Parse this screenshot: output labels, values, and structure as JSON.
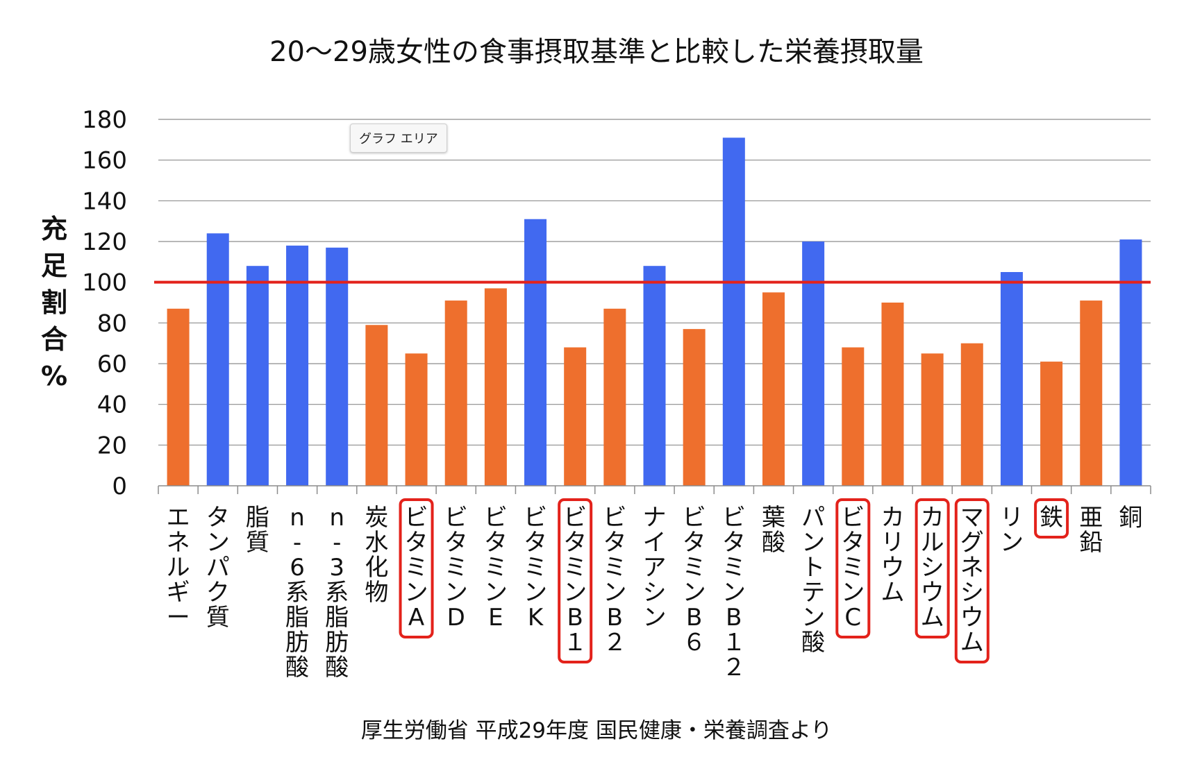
{
  "chart_data": {
    "type": "bar",
    "title": "20〜29歳女性の食事摂取基準と比較した栄養摂取量",
    "ylabel": "充足割合%",
    "source": "厚生労働省 平成29年度 国民健康・栄養調査より",
    "ylim": [
      0,
      180
    ],
    "yticks": [
      0,
      20,
      40,
      60,
      80,
      100,
      120,
      140,
      160,
      180
    ],
    "grid": true,
    "reference_line": 100,
    "colors": {
      "above": "#4169f0",
      "below": "#ee6f2d",
      "reference": "#e3221b",
      "highlight": "#e3221b",
      "grid": "#8c8c8c"
    },
    "categories": [
      "エネルギー",
      "タンパク質",
      "脂質",
      "n-6系脂肪酸",
      "n-3系脂肪酸",
      "炭水化物",
      "ビタミンA",
      "ビタミンD",
      "ビタミンE",
      "ビタミンK",
      "ビタミンB１",
      "ビタミンB２",
      "ナイアシン",
      "ビタミンB６",
      "ビタミンB１２",
      "葉酸",
      "パントテン酸",
      "ビタミンC",
      "カリウム",
      "カルシウム",
      "マグネシウム",
      "リン",
      "鉄",
      "亜鉛",
      "銅"
    ],
    "values": [
      87,
      124,
      108,
      118,
      117,
      79,
      65,
      91,
      97,
      131,
      68,
      87,
      108,
      77,
      171,
      95,
      120,
      68,
      90,
      65,
      70,
      105,
      61,
      91,
      121
    ],
    "highlighted": [
      "ビタミンA",
      "ビタミンB１",
      "ビタミンC",
      "カルシウム",
      "マグネシウム",
      "鉄"
    ]
  },
  "tooltip": {
    "label": "グラフ エリア"
  }
}
